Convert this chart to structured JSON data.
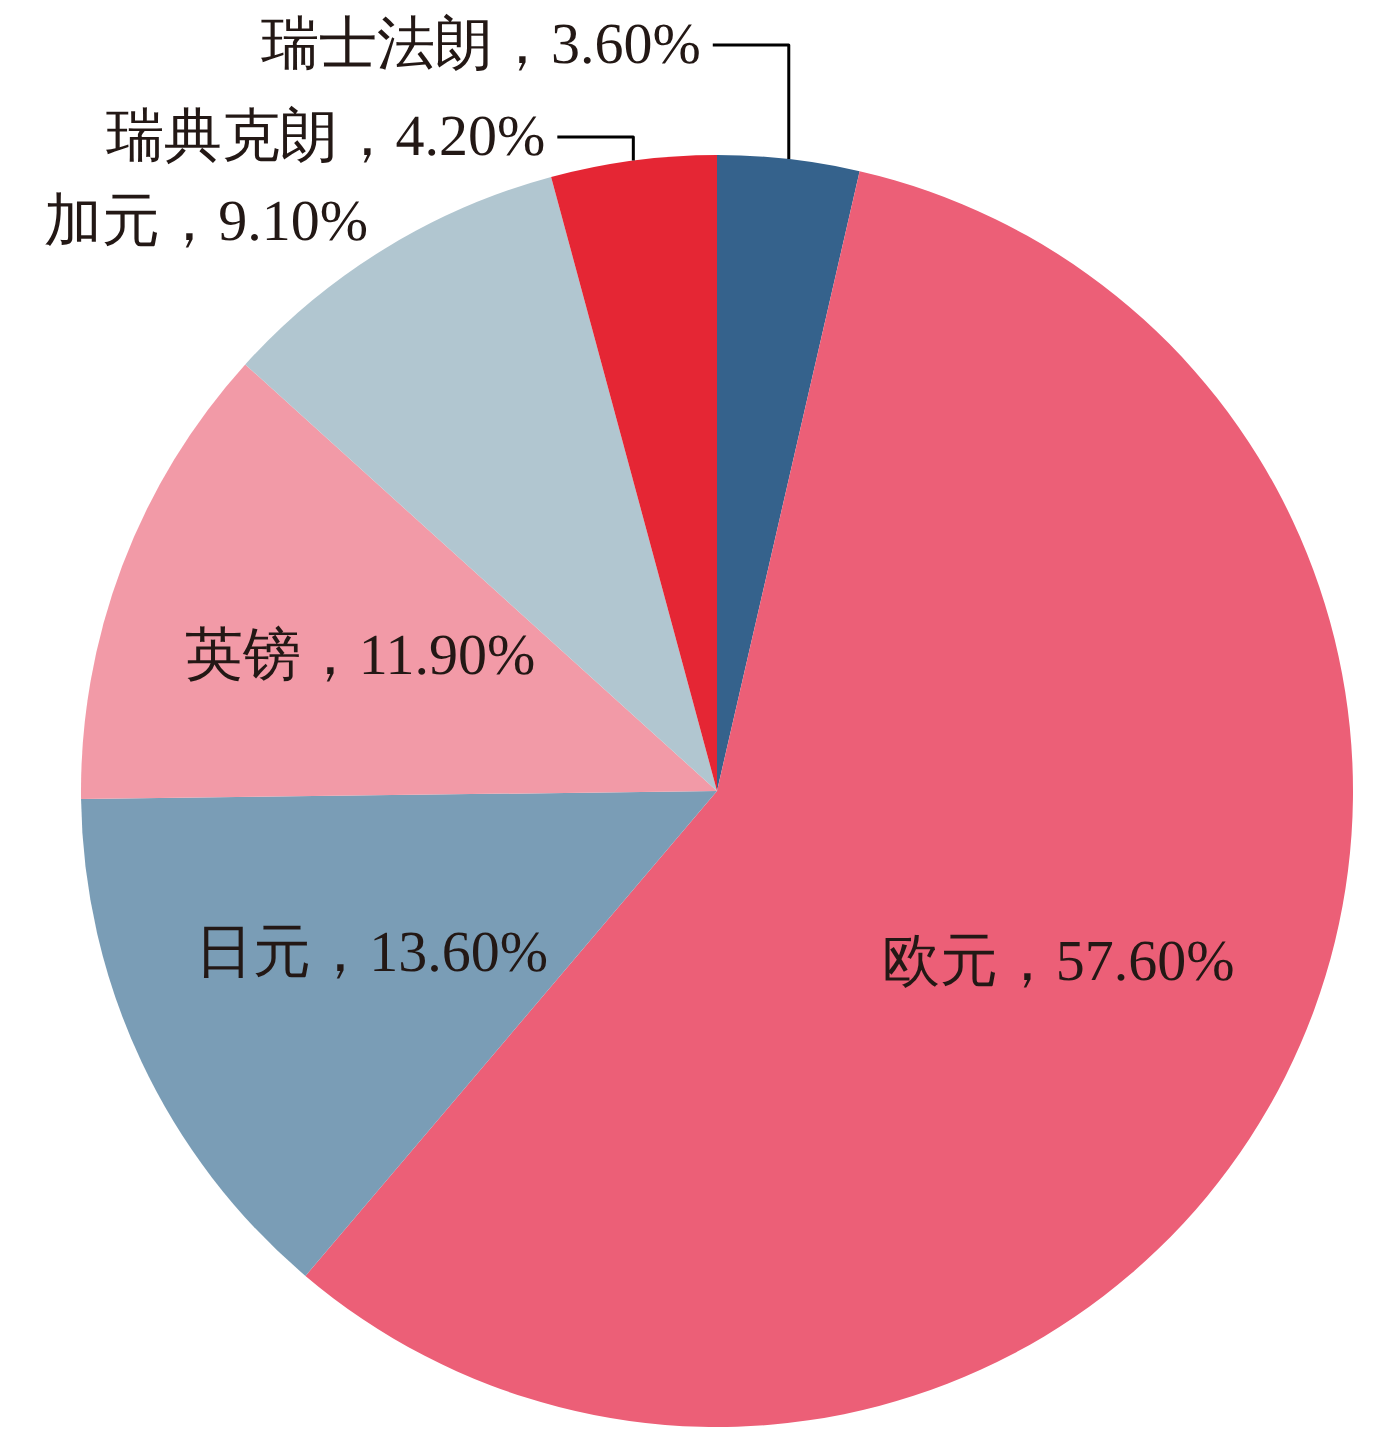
{
  "chart_data": {
    "type": "pie",
    "categories": [
      "瑞士法朗",
      "欧元",
      "日元",
      "英镑",
      "加元",
      "瑞典克朗"
    ],
    "values": [
      3.6,
      57.6,
      13.6,
      11.9,
      9.1,
      4.2
    ],
    "colors": [
      "#35628c",
      "#ec5f77",
      "#7a9db6",
      "#f29aa7",
      "#b1c6d0",
      "#e52634"
    ],
    "value_labels": [
      "3.60%",
      "57.60%",
      "13.60%",
      "11.90%",
      "9.10%",
      "4.20%"
    ]
  }
}
